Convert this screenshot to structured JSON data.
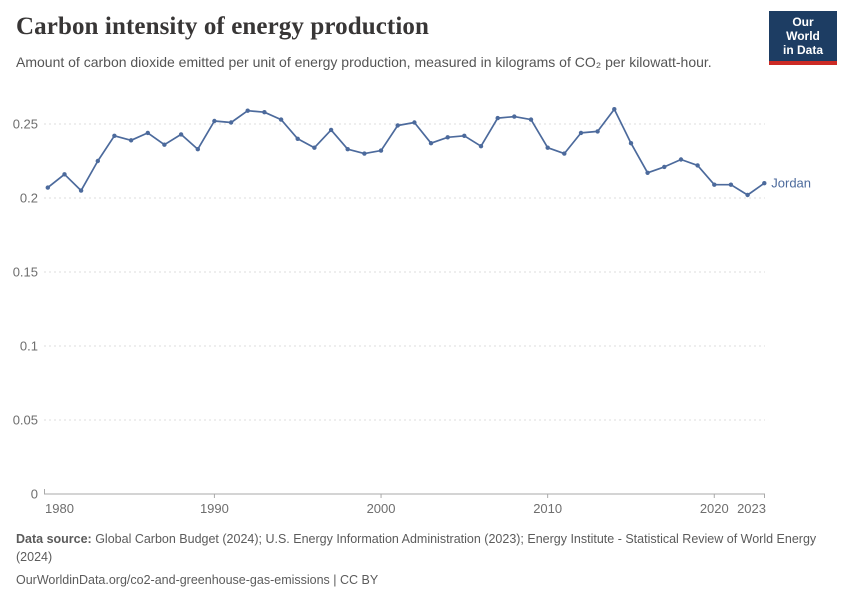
{
  "header": {
    "title": "Carbon intensity of energy production",
    "subtitle": "Amount of carbon dioxide emitted per unit of energy production, measured in kilograms of CO₂ per kilowatt-hour."
  },
  "logo": {
    "line1": "Our World",
    "line2": "in Data",
    "bg_color": "#1d3d63",
    "bar_color": "#cc2a25"
  },
  "chart_data": {
    "type": "line",
    "title": "Carbon intensity of energy production",
    "xlabel": "",
    "ylabel": "",
    "x": [
      1980,
      1981,
      1982,
      1983,
      1984,
      1985,
      1986,
      1987,
      1988,
      1989,
      1990,
      1991,
      1992,
      1993,
      1994,
      1995,
      1996,
      1997,
      1998,
      1999,
      2000,
      2001,
      2002,
      2003,
      2004,
      2005,
      2006,
      2007,
      2008,
      2009,
      2010,
      2011,
      2012,
      2013,
      2014,
      2015,
      2016,
      2017,
      2018,
      2019,
      2020,
      2021,
      2022,
      2023
    ],
    "series": [
      {
        "name": "Jordan",
        "color": "#4c6a9c",
        "values": [
          0.207,
          0.216,
          0.205,
          0.225,
          0.242,
          0.239,
          0.244,
          0.236,
          0.243,
          0.233,
          0.252,
          0.251,
          0.259,
          0.258,
          0.253,
          0.24,
          0.234,
          0.246,
          0.233,
          0.23,
          0.232,
          0.249,
          0.251,
          0.237,
          0.241,
          0.242,
          0.235,
          0.254,
          0.255,
          0.253,
          0.234,
          0.23,
          0.244,
          0.245,
          0.26,
          0.237,
          0.217,
          0.221,
          0.226,
          0.222,
          0.209,
          0.209,
          0.202,
          0.21
        ]
      }
    ],
    "xlim": [
      1980,
      2023
    ],
    "ylim": [
      0,
      0.25
    ],
    "yticks": [
      0,
      0.05,
      0.1,
      0.15,
      0.2,
      0.25
    ],
    "xticks": [
      1980,
      1990,
      2000,
      2010,
      2020,
      2023
    ],
    "grid": "horizontal-dashed",
    "legend": "entity-label-at-line-end",
    "colors": {
      "gridline": "#dcdcdc",
      "axis": "#a9a9a9",
      "tick_label": "#6e6e6e"
    }
  },
  "footer": {
    "datasource_label": "Data source:",
    "datasource_rest": " Global Carbon Budget (2024); U.S. Energy Information Administration (2023); Energy Institute - Statistical Review of World Energy (2024)",
    "citation": "OurWorldinData.org/co2-and-greenhouse-gas-emissions | CC BY"
  }
}
